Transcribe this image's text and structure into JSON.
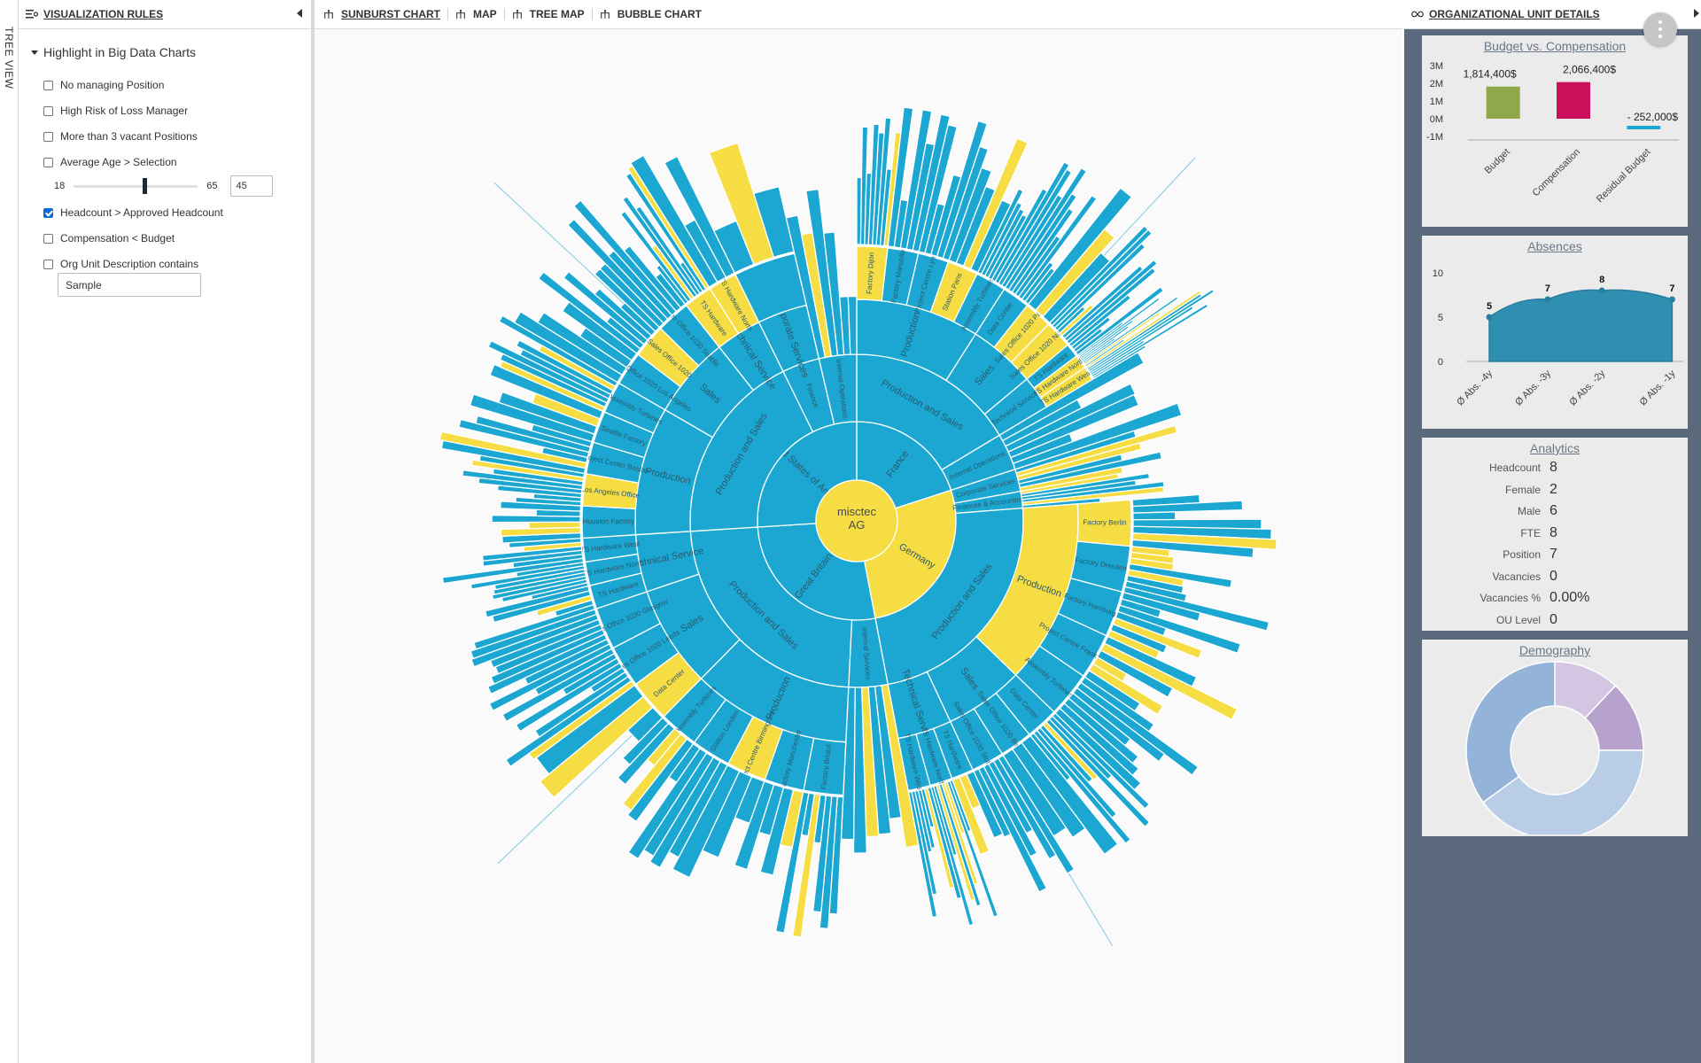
{
  "tree_view": {
    "label": "TREE VIEW"
  },
  "left_panel": {
    "title": "VISUALIZATION RULES",
    "group_title": "Highlight in Big Data Charts",
    "rules": [
      {
        "label": "No managing Position",
        "checked": false
      },
      {
        "label": "High Risk of Loss Manager",
        "checked": false
      },
      {
        "label": "More than 3 vacant Positions",
        "checked": false
      },
      {
        "label": "Average Age > Selection",
        "checked": false
      },
      {
        "label": "Headcount > Approved Headcount",
        "checked": true
      },
      {
        "label": "Compensation < Budget",
        "checked": false
      },
      {
        "label": "Org Unit Description contains",
        "checked": false
      }
    ],
    "age_slider": {
      "min_label": "18",
      "max_label": "65",
      "value": "45",
      "position": 0.57
    },
    "description_value": "Sample"
  },
  "tabs": [
    {
      "label": "SUNBURST CHART",
      "active": true
    },
    {
      "label": "MAP",
      "active": false
    },
    {
      "label": "TREE MAP",
      "active": false
    },
    {
      "label": "BUBBLE CHART",
      "active": false
    }
  ],
  "colors": {
    "accent": "#1ba7d1",
    "highlight": "#f6dd43",
    "panel_bg": "#5a6a7c",
    "card_bg": "#ebebeb"
  },
  "sunburst": {
    "root": "misctec AG",
    "countries": [
      {
        "name": "United States of America",
        "share": 0.26,
        "highlight": false,
        "units": [
          {
            "name": "Production and Sales",
            "share": 0.72,
            "children": [
              {
                "name": "Production",
                "share": 0.5,
                "children": [
                  "Houston Factory",
                  "Los Angeles Office",
                  "Project Center Boston",
                  "Seattle Factory",
                  "Assembly Turbines"
                ]
              },
              {
                "name": "Sales",
                "share": 0.32,
                "children": [
                  "Sales Office 1020 Los Angeles",
                  "Sales Office 1020",
                  "Sales Office 1030 Seattle"
                ]
              },
              {
                "name": "Technical Service",
                "share": 0.18,
                "children": [
                  "TS Hardware",
                  "TS Hardware North"
                ]
              }
            ]
          },
          {
            "name": "Finance",
            "share": 0.14,
            "children": [
              {
                "name": "Corporate Services",
                "share": 1,
                "children": []
              }
            ]
          },
          {
            "name": "Internal Operations",
            "share": 0.14,
            "children": []
          }
        ]
      },
      {
        "name": "France",
        "share": 0.2,
        "highlight": false,
        "units": [
          {
            "name": "Production and Sales",
            "share": 0.82,
            "children": [
              {
                "name": "Production",
                "share": 0.55,
                "children": [
                  "Factory Dijon",
                  "Factory Marseille",
                  "Project Centre Lyon",
                  "Station Paris",
                  "Assembly Turbines"
                ]
              },
              {
                "name": "Sales",
                "share": 0.3,
                "children": [
                  "Data Center",
                  "Sales Office 1020 Paris",
                  "Sales Office 1020 Nizza"
                ]
              },
              {
                "name": "Technical Service",
                "share": 0.15,
                "children": [
                  "TS Hardware",
                  "TS Hardware North",
                  "TS Hardware West"
                ]
              }
            ]
          },
          {
            "name": "Internal Operations",
            "share": 0.18,
            "children": []
          }
        ]
      },
      {
        "name": "Germany",
        "share": 0.27,
        "highlight": true,
        "units": [
          {
            "name": "Corporate Services",
            "share": 0.08,
            "children": []
          },
          {
            "name": "Finances & Accounting",
            "share": 0.06,
            "children": []
          },
          {
            "name": "Production and Sales",
            "share": 0.86,
            "children": [
              {
                "name": "Production",
                "share": 0.58,
                "children": [
                  "Factory Berlin",
                  "Factory Dresden",
                  "Factory Hamburg",
                  "Project Centre Frankfurt",
                  "Assembly Turbines"
                ]
              },
              {
                "name": "Sales",
                "share": 0.25,
                "children": [
                  "Data Center",
                  "Sales Office 1020 Berlin",
                  "Sales Office 1030 Stuttgart"
                ]
              },
              {
                "name": "Technical Service",
                "share": 0.17,
                "children": [
                  "TS Hardware",
                  "TS Hardware North",
                  "TS Hardware West"
                ]
              }
            ]
          }
        ]
      },
      {
        "name": "Great Britain",
        "share": 0.27,
        "highlight": false,
        "units": [
          {
            "name": "Internal Services",
            "share": 0.14,
            "children": []
          },
          {
            "name": "Production and Sales",
            "share": 0.86,
            "children": [
              {
                "name": "Production",
                "share": 0.5,
                "children": [
                  "Factory Bristol",
                  "Factory Manchester",
                  "Project Centre Birmingham",
                  "Station London",
                  "Assembly Turbines"
                ]
              },
              {
                "name": "Sales",
                "share": 0.32,
                "children": [
                  "Data Center",
                  "Sales Office 1020 Leeds",
                  "Sales Office 1030 Glasgow"
                ]
              },
              {
                "name": "Technical Service",
                "share": 0.18,
                "children": [
                  "TS Hardware",
                  "TS Hardware North",
                  "TS Hardware West"
                ]
              }
            ]
          }
        ]
      }
    ]
  },
  "right_panel": {
    "title": "ORGANIZATIONAL UNIT DETAILS",
    "budget_card": {
      "title": "Budget vs. Compensation",
      "y_ticks": [
        "3M",
        "2M",
        "1M",
        "0M",
        "-1M"
      ],
      "bars": [
        {
          "label": "Budget",
          "value": 1814400,
          "value_label": "1,814,400$",
          "color": "#8ea84a"
        },
        {
          "label": "Compensation",
          "value": 2066400,
          "value_label": "2,066,400$",
          "color": "#c9105a"
        },
        {
          "label": "Residual Budget",
          "value": -252000,
          "value_label": "- 252,000$",
          "color": "#1ba7d1"
        }
      ]
    },
    "absences_card": {
      "title": "Absences",
      "y_ticks": [
        "10",
        "5",
        "0"
      ],
      "points": [
        {
          "label": "Ø Abs. -4y",
          "value": 5
        },
        {
          "label": "Ø Abs. -3y",
          "value": 7
        },
        {
          "label": "Ø Abs. -2y",
          "value": 8
        },
        {
          "label": "Ø Abs. -1y",
          "value": 7
        }
      ]
    },
    "analytics_card": {
      "title": "Analytics",
      "rows": [
        {
          "label": "Headcount",
          "value": "8"
        },
        {
          "label": "Female",
          "value": "2"
        },
        {
          "label": "Male",
          "value": "6"
        },
        {
          "label": "FTE",
          "value": "8"
        },
        {
          "label": "Position",
          "value": "7"
        },
        {
          "label": "Vacancies",
          "value": "0"
        },
        {
          "label": "Vacancies %",
          "value": "0.00%"
        },
        {
          "label": "OU Level",
          "value": "0"
        }
      ]
    },
    "demography_card": {
      "title": "Demography",
      "slices": [
        {
          "value": 12,
          "color": "#d4c6e2"
        },
        {
          "value": 13,
          "color": "#b7a1cd"
        },
        {
          "value": 40,
          "color": "#b9cde6"
        },
        {
          "value": 35,
          "color": "#94b3d9"
        }
      ]
    }
  }
}
